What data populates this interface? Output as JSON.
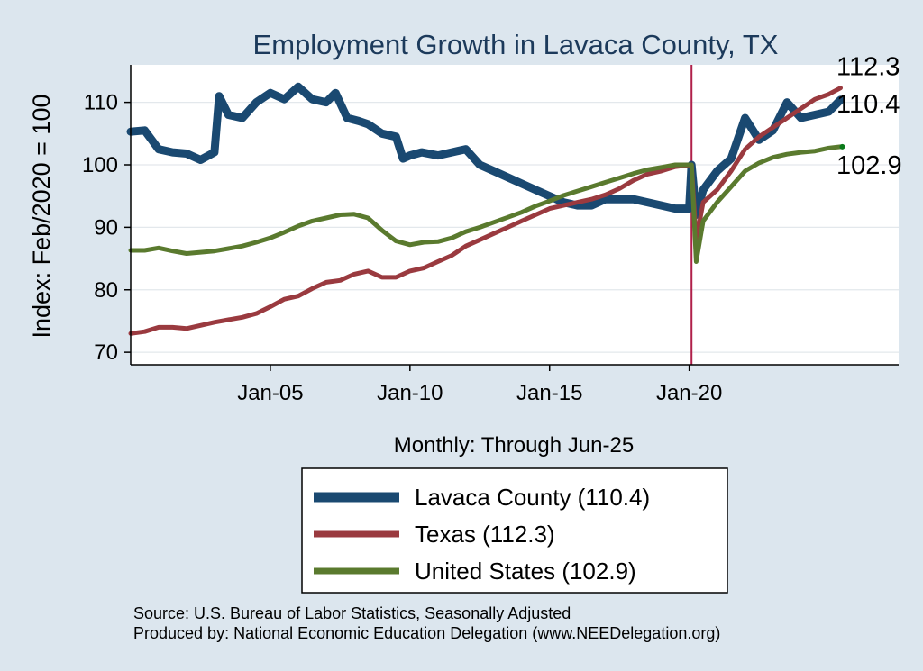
{
  "chart_data": {
    "type": "line",
    "title": "Employment Growth in Lavaca  County, TX",
    "ylabel": "Index: Feb/2020 = 100",
    "xlabel": "Monthly: Through Jun-25",
    "ylim": [
      68,
      116
    ],
    "yticks": [
      70,
      80,
      90,
      100,
      110
    ],
    "xlim": [
      "2000-01",
      "2027-07"
    ],
    "xticks": [
      {
        "x": "2005-01",
        "label": "Jan-05"
      },
      {
        "x": "2010-01",
        "label": "Jan-10"
      },
      {
        "x": "2015-01",
        "label": "Jan-15"
      },
      {
        "x": "2020-01",
        "label": "Jan-20"
      }
    ],
    "reference_line": {
      "x": "2020-02",
      "color": "#b0204a"
    },
    "grid": "horizontal",
    "legend_position": "bottom",
    "series": [
      {
        "name": "Lavaca  County (110.4)",
        "color": "#1a4971",
        "width": 9,
        "end_value": "110.4",
        "points": [
          [
            "2000-01",
            105.3
          ],
          [
            "2000-07",
            105.5
          ],
          [
            "2001-01",
            102.5
          ],
          [
            "2001-07",
            102.0
          ],
          [
            "2002-01",
            101.8
          ],
          [
            "2002-07",
            100.8
          ],
          [
            "2003-01",
            102.0
          ],
          [
            "2003-03",
            111.0
          ],
          [
            "2003-07",
            108.0
          ],
          [
            "2004-01",
            107.5
          ],
          [
            "2004-07",
            110.0
          ],
          [
            "2005-01",
            111.5
          ],
          [
            "2005-07",
            110.5
          ],
          [
            "2006-01",
            112.5
          ],
          [
            "2006-07",
            110.5
          ],
          [
            "2007-01",
            110.0
          ],
          [
            "2007-05",
            111.5
          ],
          [
            "2007-10",
            107.5
          ],
          [
            "2008-03",
            107.0
          ],
          [
            "2008-07",
            106.5
          ],
          [
            "2009-01",
            105.0
          ],
          [
            "2009-07",
            104.5
          ],
          [
            "2009-10",
            101.0
          ],
          [
            "2010-01",
            101.5
          ],
          [
            "2010-06",
            102.0
          ],
          [
            "2011-01",
            101.5
          ],
          [
            "2011-07",
            102.0
          ],
          [
            "2012-01",
            102.5
          ],
          [
            "2012-07",
            100.0
          ],
          [
            "2013-01",
            99.0
          ],
          [
            "2013-07",
            98.0
          ],
          [
            "2014-01",
            97.0
          ],
          [
            "2014-07",
            96.0
          ],
          [
            "2015-01",
            95.0
          ],
          [
            "2015-07",
            94.0
          ],
          [
            "2016-01",
            93.5
          ],
          [
            "2016-07",
            93.5
          ],
          [
            "2017-01",
            94.5
          ],
          [
            "2017-07",
            94.5
          ],
          [
            "2018-01",
            94.5
          ],
          [
            "2018-07",
            94.0
          ],
          [
            "2019-01",
            93.5
          ],
          [
            "2019-07",
            93.0
          ],
          [
            "2020-01",
            93.0
          ],
          [
            "2020-02",
            100.0
          ],
          [
            "2020-04",
            92.0
          ],
          [
            "2020-07",
            96.0
          ],
          [
            "2021-01",
            99.0
          ],
          [
            "2021-07",
            101.0
          ],
          [
            "2022-01",
            107.5
          ],
          [
            "2022-07",
            104.0
          ],
          [
            "2023-01",
            105.5
          ],
          [
            "2023-07",
            110.0
          ],
          [
            "2024-01",
            107.5
          ],
          [
            "2024-07",
            108.0
          ],
          [
            "2025-01",
            108.5
          ],
          [
            "2025-06",
            110.4
          ]
        ]
      },
      {
        "name": "Texas (112.3)",
        "color": "#9a3a3f",
        "width": 5,
        "end_value": "112.3",
        "points": [
          [
            "2000-01",
            73.0
          ],
          [
            "2000-07",
            73.3
          ],
          [
            "2001-01",
            74.0
          ],
          [
            "2001-07",
            74.0
          ],
          [
            "2002-01",
            73.8
          ],
          [
            "2002-07",
            74.3
          ],
          [
            "2003-01",
            74.8
          ],
          [
            "2003-07",
            75.2
          ],
          [
            "2004-01",
            75.6
          ],
          [
            "2004-07",
            76.2
          ],
          [
            "2005-01",
            77.3
          ],
          [
            "2005-07",
            78.5
          ],
          [
            "2006-01",
            79.0
          ],
          [
            "2006-07",
            80.2
          ],
          [
            "2007-01",
            81.2
          ],
          [
            "2007-07",
            81.5
          ],
          [
            "2008-01",
            82.5
          ],
          [
            "2008-07",
            83.0
          ],
          [
            "2009-01",
            82.0
          ],
          [
            "2009-07",
            82.0
          ],
          [
            "2010-01",
            83.0
          ],
          [
            "2010-07",
            83.5
          ],
          [
            "2011-01",
            84.5
          ],
          [
            "2011-07",
            85.5
          ],
          [
            "2012-01",
            87.0
          ],
          [
            "2012-07",
            88.0
          ],
          [
            "2013-01",
            89.0
          ],
          [
            "2013-07",
            90.0
          ],
          [
            "2014-01",
            91.0
          ],
          [
            "2014-07",
            92.0
          ],
          [
            "2015-01",
            93.0
          ],
          [
            "2015-07",
            93.5
          ],
          [
            "2016-01",
            94.0
          ],
          [
            "2016-07",
            94.5
          ],
          [
            "2017-01",
            95.2
          ],
          [
            "2017-07",
            96.2
          ],
          [
            "2018-01",
            97.5
          ],
          [
            "2018-07",
            98.5
          ],
          [
            "2019-01",
            99.0
          ],
          [
            "2019-07",
            99.7
          ],
          [
            "2020-02",
            100.0
          ],
          [
            "2020-04",
            88.0
          ],
          [
            "2020-07",
            94.0
          ],
          [
            "2021-01",
            96.0
          ],
          [
            "2021-07",
            99.0
          ],
          [
            "2022-01",
            102.5
          ],
          [
            "2022-07",
            104.5
          ],
          [
            "2023-01",
            106.0
          ],
          [
            "2023-07",
            107.5
          ],
          [
            "2024-01",
            109.0
          ],
          [
            "2024-07",
            110.5
          ],
          [
            "2025-01",
            111.3
          ],
          [
            "2025-06",
            112.3
          ]
        ]
      },
      {
        "name": "United States (102.9)",
        "color": "#5a7a2e",
        "width": 5,
        "end_value": "102.9",
        "points": [
          [
            "2000-01",
            86.3
          ],
          [
            "2000-07",
            86.3
          ],
          [
            "2001-01",
            86.7
          ],
          [
            "2001-07",
            86.2
          ],
          [
            "2002-01",
            85.8
          ],
          [
            "2002-07",
            86.0
          ],
          [
            "2003-01",
            86.2
          ],
          [
            "2003-07",
            86.6
          ],
          [
            "2004-01",
            87.0
          ],
          [
            "2004-07",
            87.6
          ],
          [
            "2005-01",
            88.3
          ],
          [
            "2005-07",
            89.2
          ],
          [
            "2006-01",
            90.2
          ],
          [
            "2006-07",
            91.0
          ],
          [
            "2007-01",
            91.5
          ],
          [
            "2007-07",
            92.0
          ],
          [
            "2008-01",
            92.1
          ],
          [
            "2008-07",
            91.5
          ],
          [
            "2009-01",
            89.5
          ],
          [
            "2009-07",
            87.8
          ],
          [
            "2010-01",
            87.2
          ],
          [
            "2010-07",
            87.6
          ],
          [
            "2011-01",
            87.7
          ],
          [
            "2011-07",
            88.3
          ],
          [
            "2012-01",
            89.3
          ],
          [
            "2012-07",
            90.0
          ],
          [
            "2013-01",
            90.8
          ],
          [
            "2013-07",
            91.6
          ],
          [
            "2014-01",
            92.4
          ],
          [
            "2014-07",
            93.4
          ],
          [
            "2015-01",
            94.2
          ],
          [
            "2015-07",
            95.1
          ],
          [
            "2016-01",
            95.8
          ],
          [
            "2016-07",
            96.5
          ],
          [
            "2017-01",
            97.2
          ],
          [
            "2017-07",
            97.9
          ],
          [
            "2018-01",
            98.6
          ],
          [
            "2018-07",
            99.2
          ],
          [
            "2019-01",
            99.6
          ],
          [
            "2019-07",
            100.0
          ],
          [
            "2020-02",
            100.0
          ],
          [
            "2020-04",
            84.5
          ],
          [
            "2020-07",
            91.0
          ],
          [
            "2021-01",
            94.0
          ],
          [
            "2021-07",
            96.5
          ],
          [
            "2022-01",
            99.0
          ],
          [
            "2022-07",
            100.3
          ],
          [
            "2023-01",
            101.2
          ],
          [
            "2023-07",
            101.7
          ],
          [
            "2024-01",
            102.0
          ],
          [
            "2024-07",
            102.2
          ],
          [
            "2025-01",
            102.7
          ],
          [
            "2025-06",
            102.9
          ]
        ]
      }
    ]
  },
  "source_lines": [
    "Source: U.S. Bureau of Labor Statistics, Seasonally Adjusted",
    "Produced by: National Economic Education Delegation (www.NEEDelegation.org)"
  ]
}
